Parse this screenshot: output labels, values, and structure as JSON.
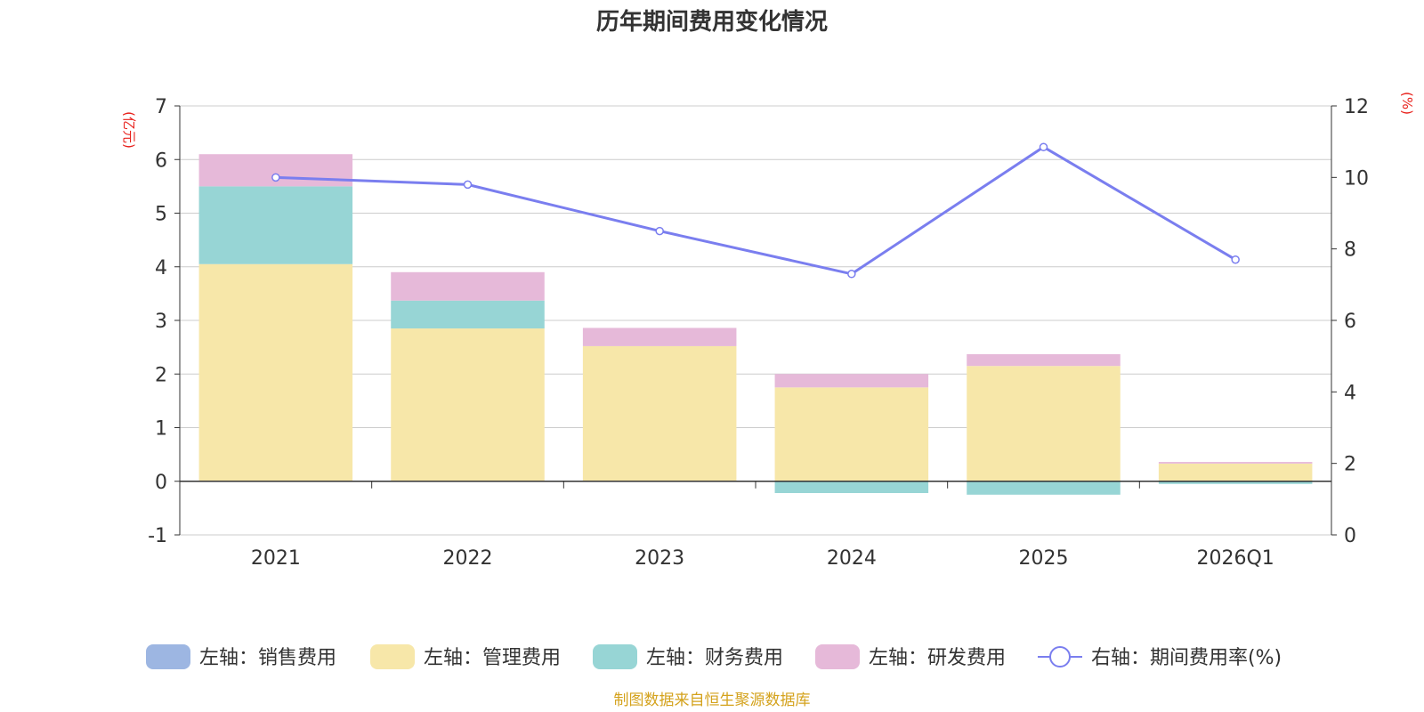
{
  "chart_data": {
    "type": "bar",
    "stacked": true,
    "title": "历年期间费用变化情况",
    "left_axis_unit": "(亿元)",
    "right_axis_unit": "(%)",
    "categories": [
      "2021",
      "2022",
      "2023",
      "2024",
      "2025",
      "2026Q1"
    ],
    "ylim_left": [
      -1,
      7
    ],
    "yticks_left": [
      -1,
      0,
      1,
      2,
      3,
      4,
      5,
      6,
      7
    ],
    "ylim_right": [
      0,
      12
    ],
    "yticks_right": [
      0,
      2,
      4,
      6,
      8,
      10,
      12
    ],
    "series": [
      {
        "name": "左轴：销售费用",
        "axis": "left",
        "type": "bar",
        "color": "#9db6e2",
        "values": [
          0,
          0,
          0,
          0,
          0,
          0
        ]
      },
      {
        "name": "左轴：管理费用",
        "axis": "left",
        "type": "bar",
        "color": "#f7e7a9",
        "values": [
          4.05,
          2.85,
          2.52,
          1.75,
          2.15,
          0.33
        ]
      },
      {
        "name": "左轴：财务费用",
        "axis": "left",
        "type": "bar",
        "color": "#97d5d5",
        "values": [
          1.45,
          0.52,
          0,
          -0.22,
          -0.25,
          -0.05
        ]
      },
      {
        "name": "左轴：研发费用",
        "axis": "left",
        "type": "bar",
        "color": "#e6b9d9",
        "values": [
          0.6,
          0.53,
          0.34,
          0.25,
          0.22,
          0.03
        ]
      },
      {
        "name": "右轴：期间费用率(%)",
        "axis": "right",
        "type": "line",
        "color": "#7a7eef",
        "values": [
          10.0,
          9.8,
          8.5,
          7.3,
          10.85,
          7.7
        ]
      }
    ],
    "legend_position": "bottom",
    "source": "制图数据来自恒生聚源数据库"
  }
}
